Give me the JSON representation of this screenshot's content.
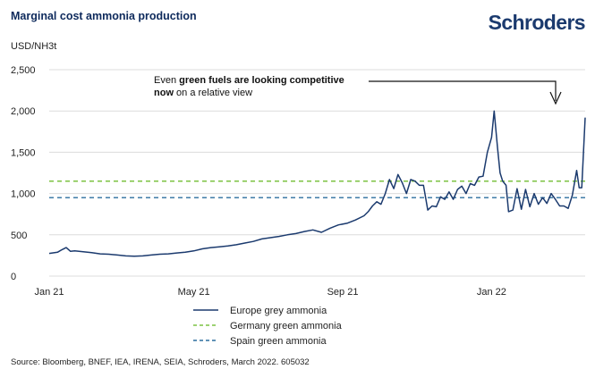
{
  "header": {
    "title": "Marginal cost ammonia production",
    "brand": "Schroders"
  },
  "annotation": {
    "line1_plain": "Even ",
    "line1_bold": "green fuels are looking competitive",
    "line2_bold": "now",
    "line2_plain": " on a relative view"
  },
  "source": "Source: Bloomberg, BNEF, IEA, IRENA, SEIA, Schroders, March 2022. 605032",
  "chart_data": {
    "type": "line",
    "title": "Marginal cost ammonia production",
    "ylabel": "USD/NH3t",
    "xlabel": "",
    "ylim": [
      0,
      2500
    ],
    "xlim": [
      0,
      63
    ],
    "grid": true,
    "x_unit": "weeks since Jan 21",
    "yticks": [
      {
        "value": 0,
        "label": "0"
      },
      {
        "value": 500,
        "label": "500"
      },
      {
        "value": 1000,
        "label": "1,000"
      },
      {
        "value": 1500,
        "label": "1,500"
      },
      {
        "value": 2000,
        "label": "2,000"
      },
      {
        "value": 2500,
        "label": "2,500"
      }
    ],
    "xticks": [
      {
        "value": 0,
        "label": "Jan 21"
      },
      {
        "value": 17,
        "label": "May 21"
      },
      {
        "value": 34.5,
        "label": "Sep 21"
      },
      {
        "value": 52,
        "label": "Jan 22"
      }
    ],
    "series": [
      {
        "name": "Europe grey ammonia",
        "color": "#1b3a6e",
        "style": "solid",
        "x": [
          0,
          1,
          1.5,
          2,
          2.5,
          3,
          4,
          5,
          6,
          7,
          8,
          9,
          10,
          11,
          12,
          13,
          14,
          15,
          16,
          17,
          18,
          19,
          20,
          21,
          22,
          23,
          24,
          25,
          26,
          27,
          28,
          29,
          30,
          31,
          32,
          33,
          34,
          35,
          36,
          37,
          37.5,
          38,
          38.5,
          39,
          39.5,
          40,
          40.5,
          41,
          41.5,
          42,
          42.5,
          43,
          43.5,
          44,
          44.5,
          45,
          45.5,
          46,
          46.5,
          47,
          47.5,
          48,
          48.5,
          49,
          49.5,
          50,
          50.5,
          51,
          51.5,
          52,
          52.3,
          52.7,
          53,
          53.3,
          53.7,
          54,
          54.5,
          55,
          55.5,
          56,
          56.5,
          57,
          57.5,
          58,
          58.5,
          59,
          59.5,
          60,
          60.5,
          61,
          61.5,
          62,
          62.3,
          62.6,
          63
        ],
        "values": [
          275,
          290,
          320,
          345,
          300,
          305,
          295,
          285,
          270,
          265,
          255,
          245,
          240,
          245,
          255,
          265,
          270,
          280,
          290,
          305,
          330,
          345,
          355,
          365,
          380,
          400,
          420,
          450,
          465,
          480,
          500,
          515,
          540,
          560,
          530,
          580,
          620,
          640,
          680,
          730,
          780,
          850,
          900,
          870,
          1000,
          1170,
          1060,
          1230,
          1130,
          1000,
          1170,
          1150,
          1100,
          1100,
          800,
          850,
          840,
          960,
          930,
          1020,
          930,
          1050,
          1090,
          1000,
          1120,
          1100,
          1200,
          1210,
          1500,
          1680,
          2000,
          1550,
          1250,
          1150,
          1100,
          780,
          800,
          1060,
          810,
          1050,
          840,
          1000,
          870,
          950,
          880,
          1000,
          930,
          850,
          850,
          820,
          980,
          1280,
          1070,
          1070,
          1920
        ]
      },
      {
        "name": "Germany green ammonia",
        "color": "#7cc242",
        "style": "dashed",
        "constant": 1150
      },
      {
        "name": "Spain green ammonia",
        "color": "#2b6e9e",
        "style": "dashed",
        "constant": 950
      }
    ]
  }
}
